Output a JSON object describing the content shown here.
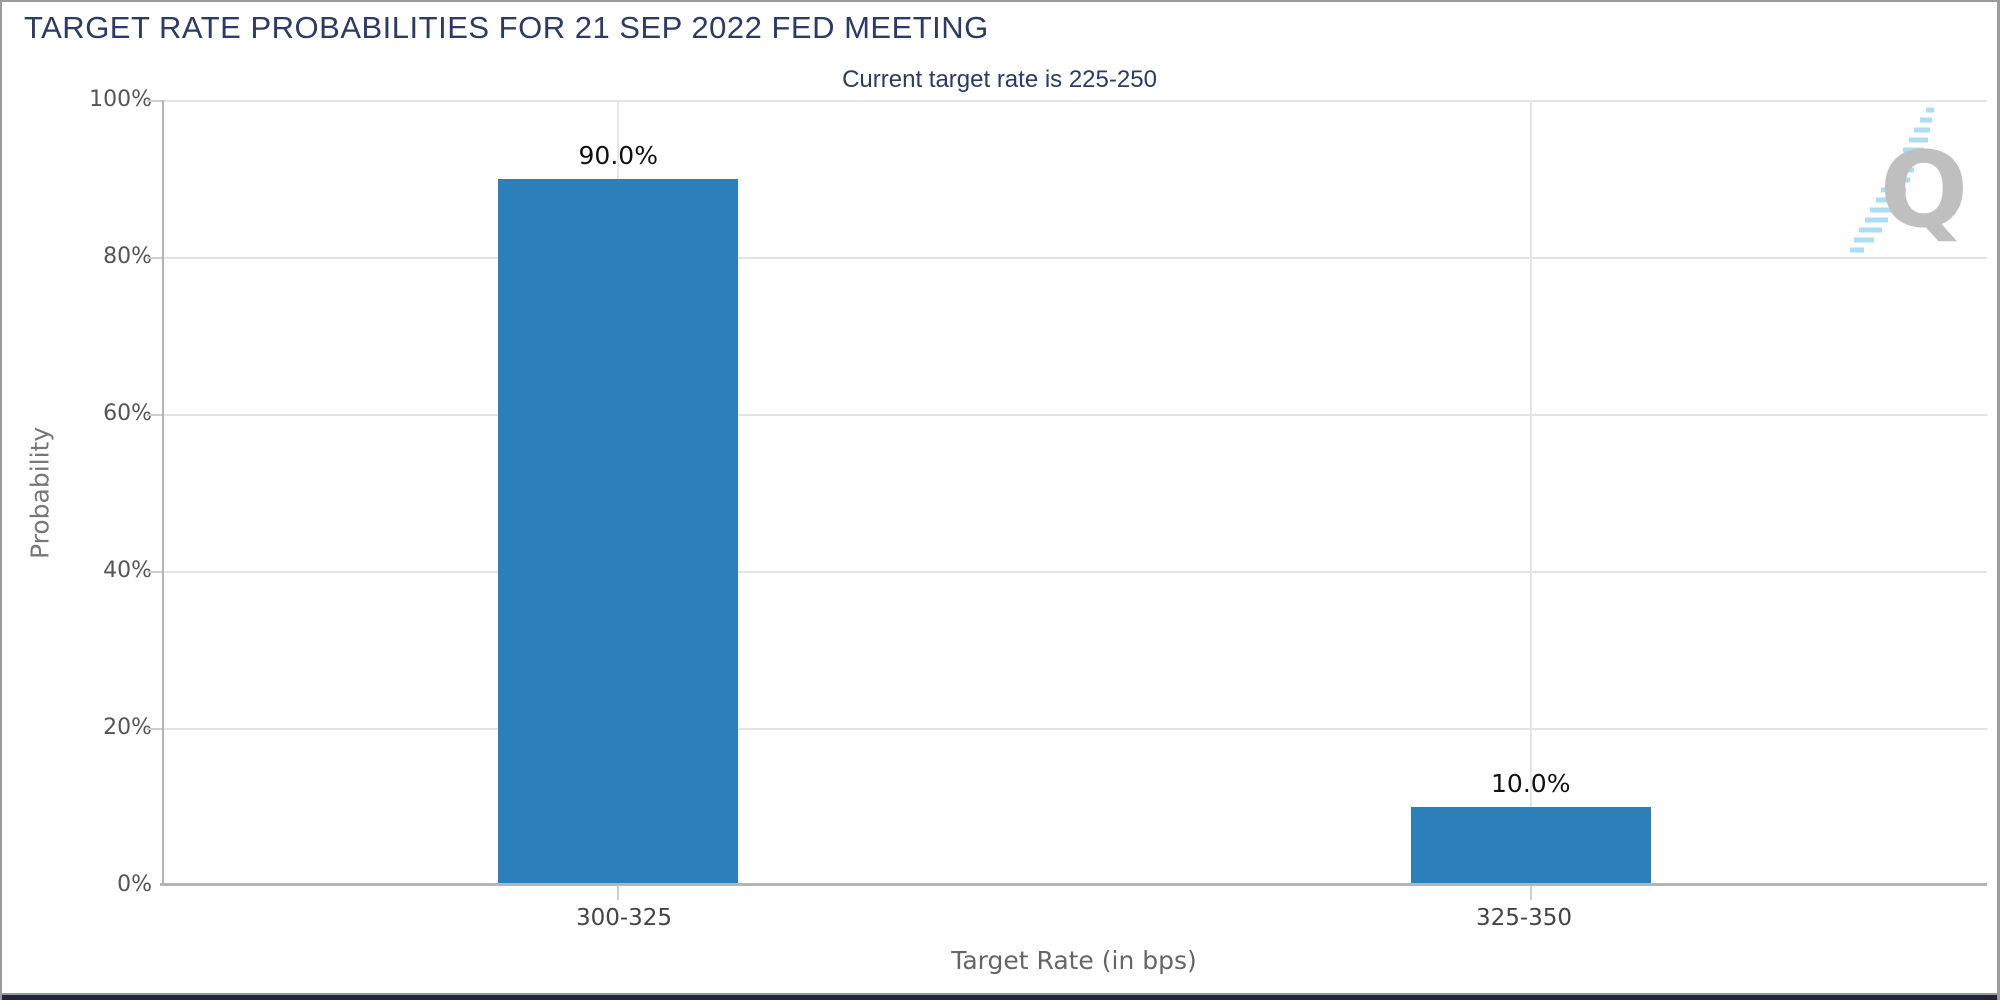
{
  "header": {
    "title": "TARGET RATE PROBABILITIES FOR 21 SEP 2022 FED MEETING",
    "subtitle": "Current target rate is 225-250"
  },
  "watermark": {
    "letter": "Q"
  },
  "colors": {
    "bar": "#2b80b9",
    "title_text": "#2b3a66",
    "axis_line": "#b5b5b5",
    "gridline": "#e4e4e4",
    "frame_border": "#9c9c9c",
    "bottom_strip": "#20253c",
    "watermark_gray": "#bcbcbc",
    "watermark_blue": "#a8dcf5"
  },
  "chart_data": {
    "type": "bar",
    "title": "TARGET RATE PROBABILITIES FOR 21 SEP 2022 FED MEETING",
    "subtitle": "Current target rate is 225-250",
    "categories": [
      "300-325",
      "325-350"
    ],
    "values": [
      90.0,
      10.0
    ],
    "value_labels": [
      "90.0%",
      "10.0%"
    ],
    "xlabel": "Target Rate (in bps)",
    "ylabel": "Probability",
    "ylim": [
      0,
      100
    ],
    "ytick_labels": [
      "0%",
      "20%",
      "40%",
      "60%",
      "80%",
      "100%"
    ],
    "grid": true,
    "legend": false,
    "bar_color": "#2b80b9"
  }
}
